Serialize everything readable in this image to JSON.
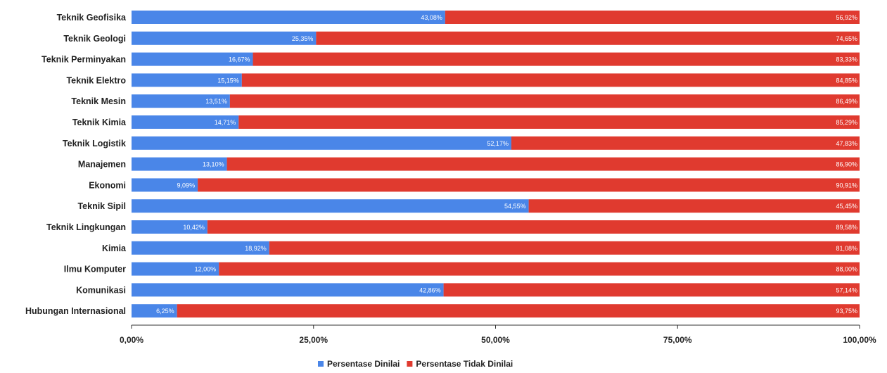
{
  "chart_data": {
    "type": "bar",
    "orientation": "horizontal",
    "stacked": true,
    "categories": [
      "Teknik Geofisika",
      "Teknik Geologi",
      "Teknik Perminyakan",
      "Teknik Elektro",
      "Teknik Mesin",
      "Teknik Kimia",
      "Teknik Logistik",
      "Manajemen",
      "Ekonomi",
      "Teknik Sipil",
      "Teknik Lingkungan",
      "Kimia",
      "Ilmu Komputer",
      "Komunikasi",
      "Hubungan Internasional"
    ],
    "series": [
      {
        "name": "Persentase Dinilai",
        "color": "#4a86e8",
        "values": [
          43.08,
          25.35,
          16.67,
          15.15,
          13.51,
          14.71,
          52.17,
          13.1,
          9.09,
          54.55,
          10.42,
          18.92,
          12.0,
          42.86,
          6.25
        ],
        "labels": [
          "43,08%",
          "25,35%",
          "16,67%",
          "15,15%",
          "13,51%",
          "14,71%",
          "52,17%",
          "13,10%",
          "9,09%",
          "54,55%",
          "10,42%",
          "18,92%",
          "12,00%",
          "42,86%",
          "6,25%"
        ]
      },
      {
        "name": "Persentase Tidak Dinilai",
        "color": "#e03a2f",
        "values": [
          56.92,
          74.65,
          83.33,
          84.85,
          86.49,
          85.29,
          47.83,
          86.9,
          90.91,
          45.45,
          89.58,
          81.08,
          88.0,
          57.14,
          93.75
        ],
        "labels": [
          "56,92%",
          "74,65%",
          "83,33%",
          "84,85%",
          "86,49%",
          "85,29%",
          "47,83%",
          "86,90%",
          "90,91%",
          "45,45%",
          "89,58%",
          "81,08%",
          "88,00%",
          "57,14%",
          "93,75%"
        ]
      }
    ],
    "xlim": [
      0,
      100
    ],
    "xticks": [
      0,
      25,
      50,
      75,
      100
    ],
    "xtick_labels": [
      "0,00%",
      "25,00%",
      "50,00%",
      "75,00%",
      "100,00%"
    ],
    "grid": false,
    "legend_position": "bottom"
  }
}
